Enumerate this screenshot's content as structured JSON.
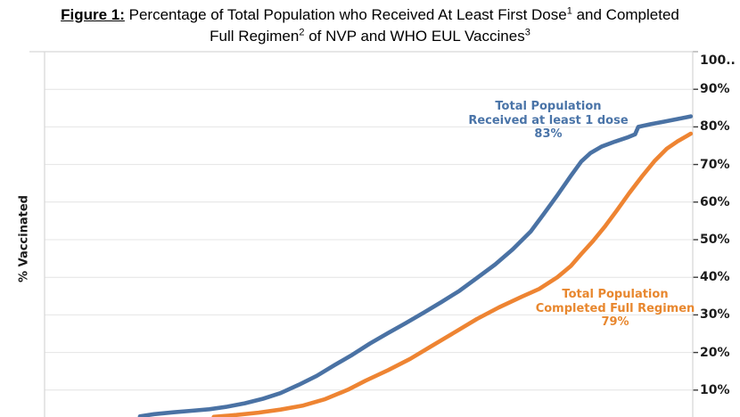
{
  "title": {
    "figure_label": "Figure 1:",
    "line1_text": "Percentage of Total Population who Received At Least First Dose",
    "line1_sup": "1",
    "line1_end": "and Completed",
    "line2_text": "Full Regimen",
    "line2_sup": "2",
    "line2_mid": "of NVP and WHO EUL Vaccines",
    "line2_sup2": "3"
  },
  "y_axis": {
    "label": "% Vaccinated",
    "ticks": [
      {
        "label": "100..",
        "value": 100
      },
      {
        "label": "90%",
        "value": 90
      },
      {
        "label": "80%",
        "value": 80
      },
      {
        "label": "70%",
        "value": 70
      },
      {
        "label": "60%",
        "value": 60
      },
      {
        "label": "50%",
        "value": 50
      },
      {
        "label": "40%",
        "value": 40
      },
      {
        "label": "30%",
        "value": 30
      },
      {
        "label": "20%",
        "value": 20
      },
      {
        "label": "10%",
        "value": 10
      }
    ]
  },
  "annotations": {
    "dose1": {
      "line1": "Total Population",
      "line2": "Received at least 1 dose",
      "value": "83%"
    },
    "full": {
      "line1": "Total Population",
      "line2": "Completed Full Regimen",
      "value": "79%"
    }
  },
  "colors": {
    "dose1_line": "#4A72A4",
    "full_line": "#EE8432",
    "dose1_text": "#4A74A8",
    "full_text": "#E8872E",
    "grid": "#E4E4E4",
    "border": "#D6D6D6",
    "tick_mark": "#3A3A3A",
    "tick_text": "#1C1C1C",
    "title_text": "#000000"
  },
  "chart_data": {
    "type": "line",
    "title": "Percentage of Total Population who Received At Least First Dose and Completed Full Regimen of NVP and WHO EUL Vaccines",
    "ylabel": "% Vaccinated",
    "ylim": [
      0,
      100
    ],
    "grid": true,
    "x_axis_visible": false,
    "note_x": "x values are fractions of the visible timeline width (x-axis labels cropped out of screenshot); y values are percent vaccinated",
    "series": [
      {
        "id": "dose1",
        "name": "Total Population Received at least 1 dose",
        "final_value_label": "83%",
        "color": "#4A72A4",
        "points": [
          [
            0.147,
            3.0
          ],
          [
            0.169,
            3.6
          ],
          [
            0.199,
            4.1
          ],
          [
            0.227,
            4.5
          ],
          [
            0.254,
            4.9
          ],
          [
            0.282,
            5.6
          ],
          [
            0.309,
            6.5
          ],
          [
            0.337,
            7.7
          ],
          [
            0.364,
            9.2
          ],
          [
            0.392,
            11.4
          ],
          [
            0.42,
            13.8
          ],
          [
            0.447,
            16.6
          ],
          [
            0.475,
            19.4
          ],
          [
            0.502,
            22.4
          ],
          [
            0.53,
            25.2
          ],
          [
            0.557,
            27.8
          ],
          [
            0.585,
            30.6
          ],
          [
            0.612,
            33.4
          ],
          [
            0.64,
            36.4
          ],
          [
            0.667,
            39.8
          ],
          [
            0.695,
            43.4
          ],
          [
            0.722,
            47.4
          ],
          [
            0.75,
            52.2
          ],
          [
            0.77,
            56.8
          ],
          [
            0.791,
            61.8
          ],
          [
            0.812,
            67.0
          ],
          [
            0.828,
            70.8
          ],
          [
            0.842,
            73.0
          ],
          [
            0.86,
            74.8
          ],
          [
            0.88,
            76.1
          ],
          [
            0.901,
            77.3
          ],
          [
            0.911,
            78.0
          ],
          [
            0.916,
            80.0
          ],
          [
            0.935,
            80.7
          ],
          [
            0.956,
            81.4
          ],
          [
            0.977,
            82.1
          ],
          [
            0.997,
            82.8
          ]
        ]
      },
      {
        "id": "full",
        "name": "Total Population Completed Full Regimen",
        "final_value_label": "79%",
        "color": "#EE8432",
        "points": [
          [
            0.261,
            2.9
          ],
          [
            0.296,
            3.4
          ],
          [
            0.33,
            4.0
          ],
          [
            0.364,
            4.8
          ],
          [
            0.399,
            5.9
          ],
          [
            0.433,
            7.6
          ],
          [
            0.468,
            10.1
          ],
          [
            0.495,
            12.5
          ],
          [
            0.53,
            15.3
          ],
          [
            0.564,
            18.3
          ],
          [
            0.598,
            21.8
          ],
          [
            0.633,
            25.4
          ],
          [
            0.667,
            28.9
          ],
          [
            0.701,
            32.0
          ],
          [
            0.736,
            34.8
          ],
          [
            0.763,
            36.9
          ],
          [
            0.791,
            40.0
          ],
          [
            0.812,
            43.0
          ],
          [
            0.828,
            46.2
          ],
          [
            0.846,
            49.6
          ],
          [
            0.864,
            53.4
          ],
          [
            0.883,
            57.8
          ],
          [
            0.902,
            62.4
          ],
          [
            0.922,
            66.9
          ],
          [
            0.941,
            70.9
          ],
          [
            0.96,
            74.2
          ],
          [
            0.977,
            76.2
          ],
          [
            0.99,
            77.5
          ],
          [
            0.997,
            78.2
          ]
        ]
      }
    ]
  }
}
